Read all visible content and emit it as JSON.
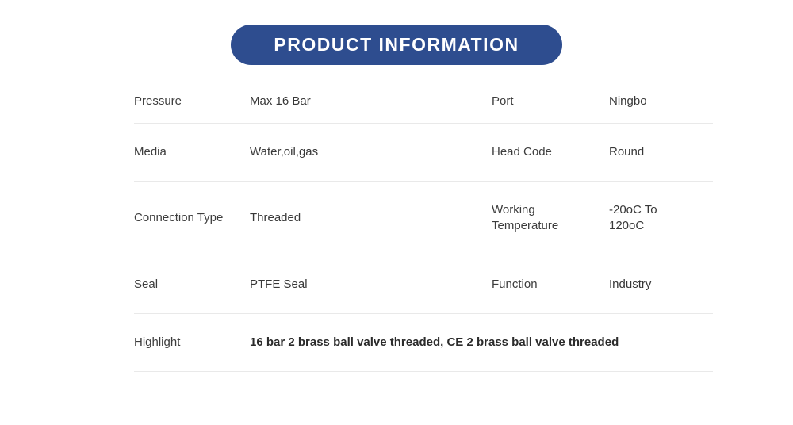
{
  "header": {
    "title": "PRODUCT INFORMATION",
    "accent_color": "#2e4d8f",
    "title_text_color": "#ffffff"
  },
  "table": {
    "rows": [
      {
        "left_label": "Pressure",
        "left_value": "Max 16 Bar",
        "right_label": "Port",
        "right_value": "Ningbo"
      },
      {
        "left_label": "Media",
        "left_value": "Water,oil,gas",
        "right_label": "Head Code",
        "right_value": "Round"
      },
      {
        "left_label": "Connection Type",
        "left_value": "Threaded",
        "right_label": "Working Temperature",
        "right_value": "-20oC To 120oC"
      },
      {
        "left_label": "Seal",
        "left_value": "PTFE Seal",
        "right_label": "Function",
        "right_value": "Industry"
      }
    ],
    "highlight": {
      "label": "Highlight",
      "value": "16 bar 2 brass ball valve threaded, CE 2 brass ball valve threaded"
    }
  }
}
